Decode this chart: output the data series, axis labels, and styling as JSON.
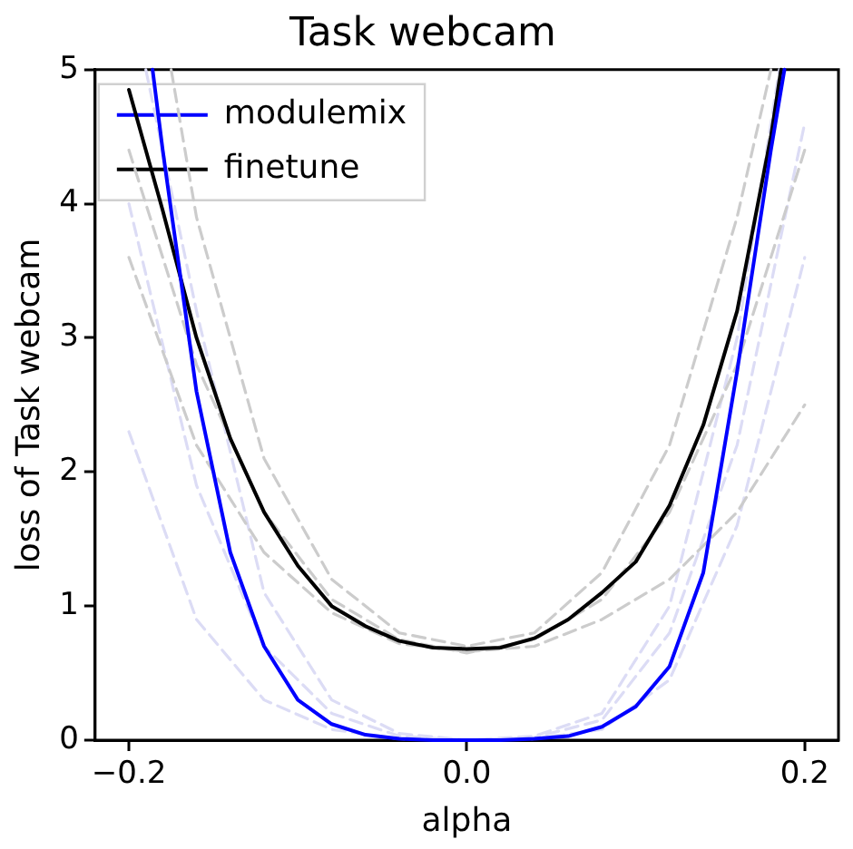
{
  "chart_data": {
    "type": "line",
    "title": "Task webcam",
    "xlabel": "alpha",
    "ylabel": "loss of Task webcam",
    "xlim": [
      -0.22,
      0.22
    ],
    "ylim": [
      0,
      5
    ],
    "xticks": [
      {
        "value": -0.2,
        "label": "−0.2"
      },
      {
        "value": 0,
        "label": "0.0"
      },
      {
        "value": 0.2,
        "label": "0.2"
      }
    ],
    "yticks": [
      0,
      1,
      2,
      3,
      4,
      5
    ],
    "grid": false,
    "legend": "top",
    "marker": "none",
    "series": [
      {
        "color": "#cccccc",
        "line_style": "dashed",
        "x": [
          -0.2,
          -0.16,
          -0.12,
          -0.08,
          -0.04,
          0,
          0.04,
          0.08,
          0.12,
          0.16,
          0.2
        ],
        "values": [
          4.4,
          2.8,
          1.7,
          1.05,
          0.75,
          0.65,
          0.75,
          1.05,
          1.7,
          2.8,
          4.4
        ]
      },
      {
        "color": "#cccccc",
        "line_style": "dashed",
        "x": [
          -0.175,
          -0.16,
          -0.12,
          -0.08,
          -0.04,
          0,
          0.04,
          0.08,
          0.12,
          0.16,
          0.18
        ],
        "values": [
          5.0,
          3.9,
          2.1,
          1.2,
          0.8,
          0.7,
          0.8,
          1.25,
          2.2,
          3.9,
          5.0
        ]
      },
      {
        "color": "#cccccc",
        "line_style": "dashed",
        "x": [
          -0.2,
          -0.16,
          -0.12,
          -0.08,
          -0.04,
          0,
          0.04,
          0.08,
          0.12,
          0.16,
          0.2
        ],
        "values": [
          3.6,
          2.2,
          1.4,
          0.95,
          0.72,
          0.66,
          0.7,
          0.9,
          1.2,
          1.7,
          2.5
        ]
      },
      {
        "color": "#dcdcf5",
        "line_style": "dashed",
        "x": [
          -0.2,
          -0.16,
          -0.12,
          -0.08,
          -0.04,
          0,
          0.04,
          0.08,
          0.12,
          0.16,
          0.2
        ],
        "values": [
          4.0,
          1.9,
          0.7,
          0.2,
          0.03,
          0,
          0.02,
          0.15,
          0.8,
          2.2,
          4.6
        ]
      },
      {
        "color": "#dcdcf5",
        "line_style": "dashed",
        "x": [
          -0.2,
          -0.16,
          -0.12,
          -0.08,
          -0.04,
          0,
          0.04,
          0.08,
          0.12,
          0.16,
          0.2
        ],
        "values": [
          2.3,
          0.9,
          0.3,
          0.08,
          0.01,
          0,
          0.01,
          0.08,
          0.45,
          1.6,
          3.6
        ]
      },
      {
        "color": "#dcdcf5",
        "line_style": "dashed",
        "x": [
          -0.19,
          -0.16,
          -0.12,
          -0.08,
          -0.04,
          0,
          0.04,
          0.08,
          0.12,
          0.16,
          0.185
        ],
        "values": [
          5.0,
          3.2,
          1.1,
          0.3,
          0.05,
          0,
          0.03,
          0.2,
          1.0,
          3.0,
          5.0
        ]
      },
      {
        "name": "modulemix",
        "color": "#0000ff",
        "line_style": "solid",
        "x": [
          -0.186,
          -0.18,
          -0.16,
          -0.14,
          -0.12,
          -0.1,
          -0.08,
          -0.06,
          -0.04,
          -0.02,
          0,
          0.02,
          0.04,
          0.06,
          0.08,
          0.1,
          0.12,
          0.14,
          0.16,
          0.18,
          0.188
        ],
        "values": [
          5.0,
          4.4,
          2.6,
          1.4,
          0.7,
          0.3,
          0.12,
          0.04,
          0.01,
          0,
          0,
          0,
          0.01,
          0.03,
          0.1,
          0.25,
          0.55,
          1.25,
          2.75,
          4.4,
          5.0
        ]
      },
      {
        "name": "finetune",
        "color": "#000000",
        "line_style": "solid",
        "x": [
          -0.2,
          -0.18,
          -0.16,
          -0.14,
          -0.12,
          -0.1,
          -0.08,
          -0.06,
          -0.04,
          -0.02,
          0,
          0.02,
          0.04,
          0.06,
          0.08,
          0.1,
          0.12,
          0.14,
          0.16,
          0.18,
          0.186
        ],
        "values": [
          4.85,
          3.95,
          3.0,
          2.25,
          1.7,
          1.3,
          1.0,
          0.85,
          0.74,
          0.69,
          0.68,
          0.69,
          0.76,
          0.9,
          1.1,
          1.33,
          1.75,
          2.35,
          3.2,
          4.5,
          5.0
        ]
      }
    ]
  }
}
